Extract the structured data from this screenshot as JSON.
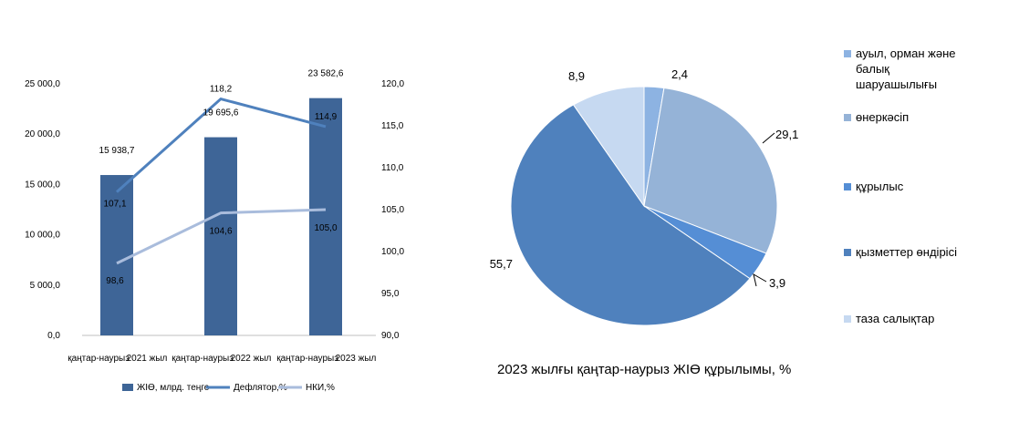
{
  "chart_data": [
    {
      "type": "bar",
      "categories": [
        "қаңтар-наурыз",
        "қаңтар-наурыз",
        "қаңтар-наурыз"
      ],
      "years": [
        "2021 жыл",
        "2022 жыл",
        "2023 жыл"
      ],
      "series": [
        {
          "name": "ЖІӨ, млрд. теңге",
          "kind": "bar",
          "axis": "left",
          "color": "#3e6597",
          "values": [
            15938.7,
            19695.6,
            23582.6
          ],
          "labels": [
            "15 938,7",
            "19 695,6",
            "23 582,6"
          ]
        },
        {
          "name": "Дефлятор,%",
          "kind": "line",
          "axis": "right",
          "color": "#4f81bd",
          "values": [
            107.1,
            118.2,
            114.9
          ],
          "labels": [
            "107,1",
            "118,2",
            "114,9"
          ]
        },
        {
          "name": "НКИ,%",
          "kind": "line",
          "axis": "right",
          "color": "#a9bcdc",
          "values": [
            98.6,
            104.6,
            105.0
          ],
          "labels": [
            "98,6",
            "104,6",
            "105,0"
          ]
        }
      ],
      "ylim_left": [
        0,
        25000
      ],
      "yticks_left": [
        "0,0",
        "5 000,0",
        "10 000,0",
        "15 000,0",
        "20 000,0",
        "25 000,0"
      ],
      "ylim_right": [
        90,
        120
      ],
      "yticks_right": [
        "90,0",
        "95,0",
        "100,0",
        "105,0",
        "110,0",
        "115,0",
        "120,0"
      ],
      "legend_position": "bottom",
      "grid": false
    },
    {
      "type": "pie",
      "title": "2023 жылғы қаңтар-наурыз  ЖІӨ құрылымы, %",
      "slices": [
        {
          "name": "ауыл, орман және балық шаруашылығы",
          "value": 2.4,
          "label": "2,4",
          "color": "#8db3e2",
          "legend_lines": [
            "ауыл, орман және",
            "балық",
            "шаруашылығы"
          ]
        },
        {
          "name": "өнеркәсіп",
          "value": 29.1,
          "label": "29,1",
          "color": "#95b3d7",
          "legend_lines": [
            "өнеркәсіп"
          ]
        },
        {
          "name": "құрылыс",
          "value": 3.9,
          "label": "3,9",
          "color": "#558ed5",
          "legend_lines": [
            "құрылыс"
          ]
        },
        {
          "name": "қызметтер өндірісі",
          "value": 55.7,
          "label": "55,7",
          "color": "#4f81bd",
          "legend_lines": [
            "қызметтер өндірісі"
          ]
        },
        {
          "name": "таза салықтар",
          "value": 8.9,
          "label": "8,9",
          "color": "#c6d9f1",
          "legend_lines": [
            "таза салықтар"
          ]
        }
      ],
      "legend_position": "right"
    }
  ]
}
